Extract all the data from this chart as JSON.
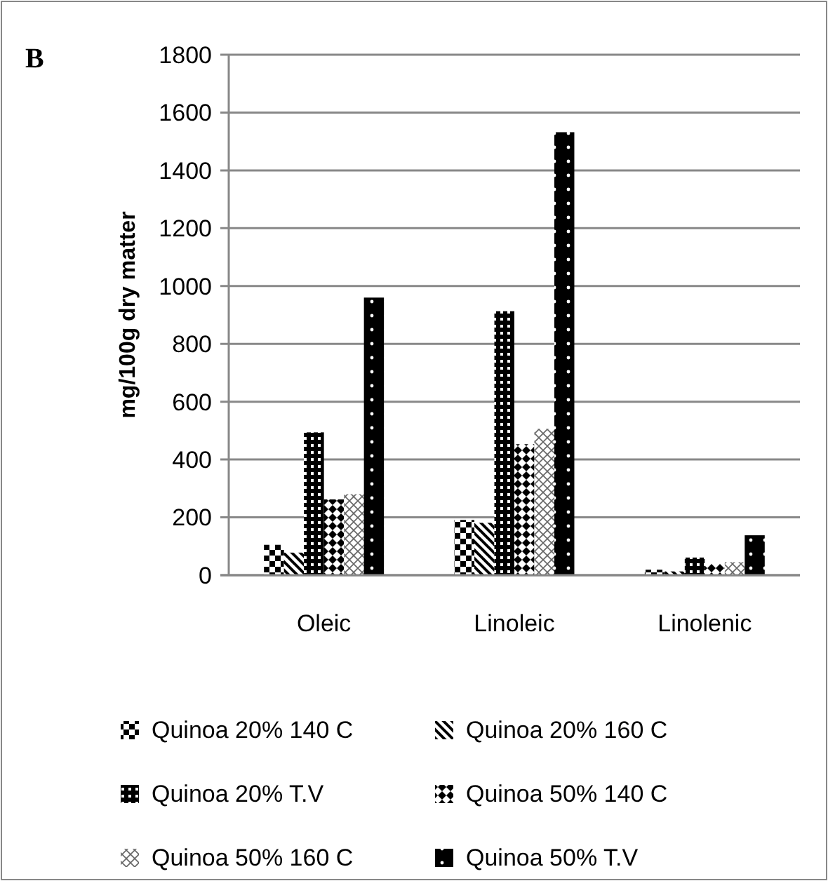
{
  "chart_data": {
    "type": "bar",
    "title": "B",
    "ylabel": "mg/100g dry matter",
    "categories": [
      "Oleic",
      "Linoleic",
      "Linolenic"
    ],
    "series": [
      {
        "name": "Quinoa 20% 140 C",
        "color": "#000000",
        "values": [
          105,
          191,
          19
        ]
      },
      {
        "name": "Quinoa 20% 160 C",
        "color": "#000000",
        "values": [
          78,
          181,
          13
        ]
      },
      {
        "name": "Quinoa 20% T.V",
        "color": "#000000",
        "values": [
          494,
          913,
          61
        ]
      },
      {
        "name": "Quinoa 50% 140 C",
        "color": "#000000",
        "values": [
          262,
          453,
          39
        ]
      },
      {
        "name": "Quinoa 50% 160 C",
        "color": "#000000",
        "values": [
          280,
          506,
          45
        ]
      },
      {
        "name": "Quinoa 50% T.V",
        "color": "#000000",
        "values": [
          960,
          1532,
          138
        ]
      }
    ],
    "ylim": [
      0,
      1800
    ],
    "yticks": [
      0,
      200,
      400,
      600,
      800,
      1000,
      1200,
      1400,
      1600,
      1800
    ],
    "grid": "y",
    "legend": "bottom"
  }
}
